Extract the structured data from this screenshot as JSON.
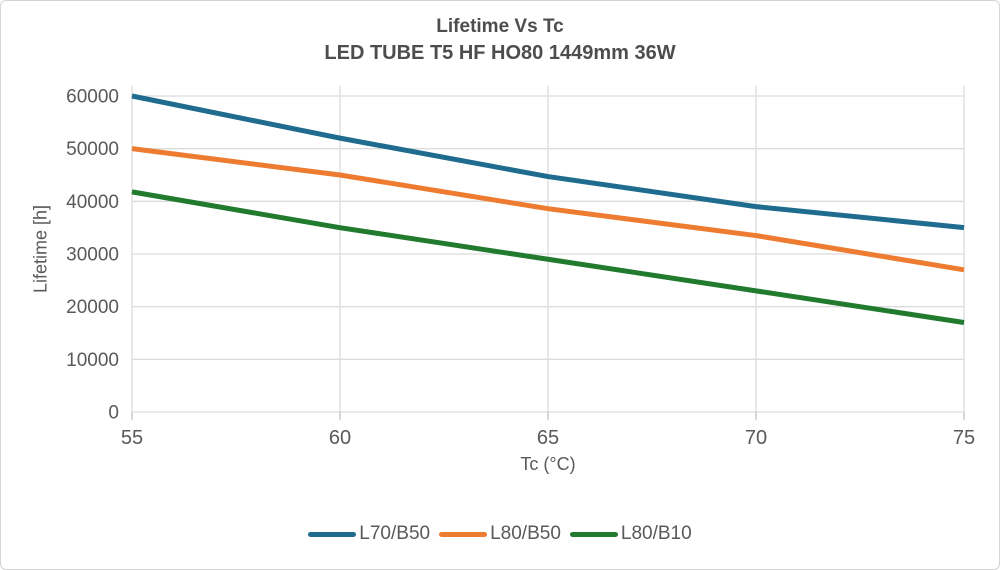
{
  "figure": {
    "border_color": "#d4d4d4",
    "background": "#ffffff"
  },
  "chart_data": {
    "type": "line",
    "title": "Lifetime Vs Tc",
    "subtitle": "LED TUBE T5 HF HO80 1449mm 36W",
    "xlabel": "Tc (°C)",
    "ylabel": "Lifetime [h]",
    "x": [
      55,
      60,
      65,
      70,
      75
    ],
    "x_ticks": [
      "55",
      "60",
      "65",
      "70",
      "75"
    ],
    "y_ticks": [
      0,
      10000,
      20000,
      30000,
      40000,
      50000,
      60000
    ],
    "y_tick_labels": [
      "0",
      "10000",
      "20000",
      "30000",
      "40000",
      "50000",
      "60000"
    ],
    "xlim": [
      55,
      75
    ],
    "ylim": [
      0,
      62000
    ],
    "grid": true,
    "legend_position": "bottom",
    "series": [
      {
        "name": "L70/B50",
        "color": "#1f6c8e",
        "values": [
          60000,
          52000,
          44700,
          39000,
          35000
        ]
      },
      {
        "name": "L80/B50",
        "color": "#ed7c31",
        "values": [
          50000,
          45000,
          38600,
          33500,
          27000
        ]
      },
      {
        "name": "L80/B10",
        "color": "#217a2e",
        "values": [
          41800,
          35000,
          29000,
          23000,
          17000
        ]
      }
    ],
    "colors": {
      "grid": "#dcdcdc",
      "axis_text": "#595959",
      "title_text": "#4d4d4d",
      "tick_mark": "#c4c4c4"
    }
  }
}
